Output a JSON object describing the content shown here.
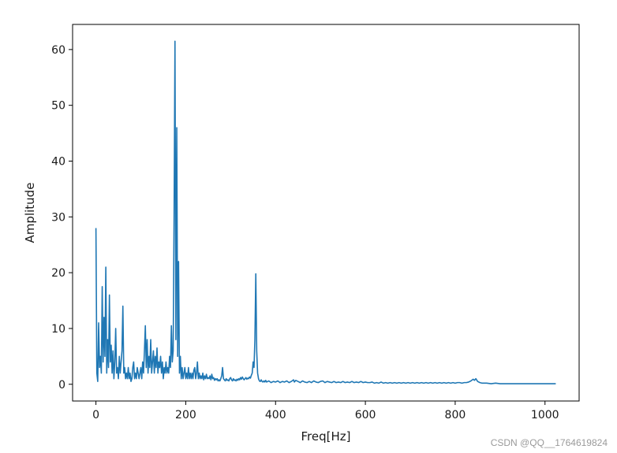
{
  "watermark": "CSDN @QQ__1764619824",
  "chart_data": {
    "type": "line",
    "title": "",
    "xlabel": "Freq[Hz]",
    "ylabel": "Amplitude",
    "xlim": [
      -52,
      1076
    ],
    "ylim": [
      -3,
      64.5
    ],
    "x_ticks": [
      0,
      200,
      400,
      600,
      800,
      1000
    ],
    "y_ticks": [
      0,
      10,
      20,
      30,
      40,
      50,
      60
    ],
    "grid": false,
    "legend": "none",
    "series": [
      {
        "color": "#1f77b4",
        "points": [
          [
            0,
            28
          ],
          [
            2,
            2
          ],
          [
            4,
            0.5
          ],
          [
            6,
            11
          ],
          [
            8,
            3
          ],
          [
            10,
            5
          ],
          [
            12,
            2
          ],
          [
            14,
            17.5
          ],
          [
            16,
            4
          ],
          [
            18,
            12
          ],
          [
            20,
            5
          ],
          [
            22,
            21
          ],
          [
            24,
            2
          ],
          [
            26,
            8
          ],
          [
            28,
            3
          ],
          [
            30,
            16
          ],
          [
            32,
            4
          ],
          [
            34,
            7
          ],
          [
            36,
            2
          ],
          [
            38,
            6
          ],
          [
            40,
            1
          ],
          [
            42,
            4
          ],
          [
            44,
            10
          ],
          [
            46,
            2
          ],
          [
            48,
            3
          ],
          [
            50,
            1
          ],
          [
            52,
            5
          ],
          [
            54,
            2
          ],
          [
            56,
            4
          ],
          [
            58,
            6
          ],
          [
            60,
            14
          ],
          [
            62,
            2
          ],
          [
            64,
            3
          ],
          [
            66,
            1
          ],
          [
            68,
            2
          ],
          [
            70,
            1
          ],
          [
            72,
            3
          ],
          [
            74,
            1
          ],
          [
            76,
            2
          ],
          [
            78,
            0.5
          ],
          [
            80,
            1
          ],
          [
            82,
            3
          ],
          [
            84,
            4
          ],
          [
            86,
            1
          ],
          [
            88,
            2
          ],
          [
            90,
            1
          ],
          [
            92,
            3
          ],
          [
            94,
            2
          ],
          [
            96,
            1
          ],
          [
            98,
            2
          ],
          [
            100,
            3
          ],
          [
            102,
            1
          ],
          [
            104,
            4
          ],
          [
            106,
            2
          ],
          [
            108,
            6
          ],
          [
            110,
            10.5
          ],
          [
            112,
            3
          ],
          [
            114,
            8
          ],
          [
            116,
            2
          ],
          [
            118,
            5
          ],
          [
            120,
            3
          ],
          [
            122,
            8
          ],
          [
            124,
            2
          ],
          [
            126,
            4
          ],
          [
            128,
            6
          ],
          [
            130,
            2
          ],
          [
            132,
            5
          ],
          [
            134,
            3
          ],
          [
            136,
            6.5
          ],
          [
            138,
            2
          ],
          [
            140,
            4
          ],
          [
            142,
            3
          ],
          [
            144,
            5
          ],
          [
            146,
            2
          ],
          [
            148,
            4
          ],
          [
            150,
            1
          ],
          [
            152,
            3
          ],
          [
            154,
            2
          ],
          [
            156,
            4
          ],
          [
            158,
            2
          ],
          [
            160,
            3
          ],
          [
            162,
            2
          ],
          [
            164,
            5
          ],
          [
            166,
            3
          ],
          [
            168,
            10.5
          ],
          [
            170,
            4
          ],
          [
            172,
            6
          ],
          [
            174,
            30
          ],
          [
            176,
            61.5
          ],
          [
            178,
            8
          ],
          [
            180,
            46
          ],
          [
            182,
            5
          ],
          [
            184,
            22
          ],
          [
            186,
            2
          ],
          [
            188,
            5
          ],
          [
            190,
            1
          ],
          [
            192,
            3
          ],
          [
            194,
            1
          ],
          [
            196,
            2
          ],
          [
            198,
            3
          ],
          [
            200,
            1
          ],
          [
            202,
            2
          ],
          [
            204,
            1
          ],
          [
            206,
            3
          ],
          [
            208,
            1
          ],
          [
            210,
            2
          ],
          [
            212,
            1
          ],
          [
            214,
            2
          ],
          [
            216,
            1
          ],
          [
            218,
            2.5
          ],
          [
            220,
            3
          ],
          [
            222,
            1
          ],
          [
            224,
            2
          ],
          [
            226,
            4
          ],
          [
            228,
            1
          ],
          [
            230,
            2
          ],
          [
            232,
            1
          ],
          [
            234,
            1.5
          ],
          [
            236,
            1
          ],
          [
            238,
            2
          ],
          [
            240,
            0.8
          ],
          [
            242,
            1.5
          ],
          [
            244,
            1
          ],
          [
            246,
            1.8
          ],
          [
            248,
            1
          ],
          [
            250,
            1.2
          ],
          [
            252,
            1
          ],
          [
            254,
            1.5
          ],
          [
            256,
            0.8
          ],
          [
            258,
            1.8
          ],
          [
            260,
            1
          ],
          [
            262,
            1.2
          ],
          [
            264,
            0.7
          ],
          [
            266,
            1
          ],
          [
            268,
            0.8
          ],
          [
            270,
            1
          ],
          [
            272,
            0.6
          ],
          [
            274,
            0.8
          ],
          [
            276,
            0.6
          ],
          [
            278,
            1
          ],
          [
            280,
            1.5
          ],
          [
            282,
            3
          ],
          [
            284,
            1
          ],
          [
            286,
            0.8
          ],
          [
            288,
            0.6
          ],
          [
            290,
            1
          ],
          [
            292,
            0.7
          ],
          [
            294,
            0.8
          ],
          [
            296,
            0.6
          ],
          [
            298,
            1
          ],
          [
            300,
            1.2
          ],
          [
            302,
            0.8
          ],
          [
            304,
            0.6
          ],
          [
            306,
            1
          ],
          [
            308,
            0.7
          ],
          [
            310,
            0.8
          ],
          [
            312,
            0.6
          ],
          [
            314,
            0.9
          ],
          [
            316,
            0.7
          ],
          [
            318,
            1
          ],
          [
            320,
            0.8
          ],
          [
            322,
            1.2
          ],
          [
            324,
            0.9
          ],
          [
            326,
            1.3
          ],
          [
            328,
            1
          ],
          [
            330,
            0.8
          ],
          [
            332,
            1
          ],
          [
            334,
            1.2
          ],
          [
            336,
            0.9
          ],
          [
            338,
            1.1
          ],
          [
            340,
            1
          ],
          [
            342,
            1.3
          ],
          [
            344,
            1.1
          ],
          [
            346,
            1.6
          ],
          [
            348,
            2
          ],
          [
            350,
            4
          ],
          [
            352,
            3
          ],
          [
            354,
            8
          ],
          [
            356,
            19.8
          ],
          [
            358,
            6
          ],
          [
            360,
            2
          ],
          [
            362,
            1
          ],
          [
            364,
            0.6
          ],
          [
            366,
            0.5
          ],
          [
            368,
            0.8
          ],
          [
            370,
            0.5
          ],
          [
            372,
            0.4
          ],
          [
            374,
            0.6
          ],
          [
            376,
            0.4
          ],
          [
            378,
            0.7
          ],
          [
            380,
            0.4
          ],
          [
            385,
            0.6
          ],
          [
            390,
            0.3
          ],
          [
            395,
            0.5
          ],
          [
            400,
            0.4
          ],
          [
            405,
            0.6
          ],
          [
            410,
            0.3
          ],
          [
            415,
            0.5
          ],
          [
            420,
            0.4
          ],
          [
            425,
            0.6
          ],
          [
            430,
            0.3
          ],
          [
            435,
            0.5
          ],
          [
            440,
            0.8
          ],
          [
            442,
            0.4
          ],
          [
            445,
            0.7
          ],
          [
            450,
            0.5
          ],
          [
            455,
            0.3
          ],
          [
            460,
            0.6
          ],
          [
            465,
            0.4
          ],
          [
            470,
            0.3
          ],
          [
            475,
            0.5
          ],
          [
            480,
            0.3
          ],
          [
            485,
            0.6
          ],
          [
            490,
            0.4
          ],
          [
            495,
            0.3
          ],
          [
            500,
            0.5
          ],
          [
            505,
            0.6
          ],
          [
            510,
            0.3
          ],
          [
            515,
            0.5
          ],
          [
            520,
            0.4
          ],
          [
            525,
            0.3
          ],
          [
            530,
            0.5
          ],
          [
            535,
            0.3
          ],
          [
            540,
            0.4
          ],
          [
            545,
            0.3
          ],
          [
            550,
            0.5
          ],
          [
            555,
            0.3
          ],
          [
            560,
            0.4
          ],
          [
            565,
            0.3
          ],
          [
            570,
            0.5
          ],
          [
            575,
            0.3
          ],
          [
            580,
            0.4
          ],
          [
            585,
            0.3
          ],
          [
            590,
            0.5
          ],
          [
            595,
            0.3
          ],
          [
            600,
            0.4
          ],
          [
            605,
            0.3
          ],
          [
            610,
            0.3
          ],
          [
            615,
            0.4
          ],
          [
            620,
            0.2
          ],
          [
            625,
            0.3
          ],
          [
            630,
            0.2
          ],
          [
            635,
            0.4
          ],
          [
            640,
            0.2
          ],
          [
            645,
            0.3
          ],
          [
            650,
            0.2
          ],
          [
            655,
            0.3
          ],
          [
            660,
            0.2
          ],
          [
            665,
            0.3
          ],
          [
            670,
            0.2
          ],
          [
            675,
            0.3
          ],
          [
            680,
            0.2
          ],
          [
            685,
            0.3
          ],
          [
            690,
            0.2
          ],
          [
            695,
            0.3
          ],
          [
            700,
            0.2
          ],
          [
            705,
            0.3
          ],
          [
            710,
            0.2
          ],
          [
            715,
            0.3
          ],
          [
            720,
            0.2
          ],
          [
            725,
            0.3
          ],
          [
            730,
            0.2
          ],
          [
            735,
            0.3
          ],
          [
            740,
            0.2
          ],
          [
            745,
            0.3
          ],
          [
            750,
            0.2
          ],
          [
            755,
            0.3
          ],
          [
            760,
            0.2
          ],
          [
            765,
            0.3
          ],
          [
            770,
            0.2
          ],
          [
            775,
            0.3
          ],
          [
            780,
            0.2
          ],
          [
            785,
            0.3
          ],
          [
            790,
            0.2
          ],
          [
            795,
            0.3
          ],
          [
            800,
            0.2
          ],
          [
            805,
            0.3
          ],
          [
            810,
            0.3
          ],
          [
            815,
            0.2
          ],
          [
            820,
            0.3
          ],
          [
            825,
            0.3
          ],
          [
            830,
            0.4
          ],
          [
            835,
            0.6
          ],
          [
            840,
            0.9
          ],
          [
            843,
            0.7
          ],
          [
            846,
            1
          ],
          [
            850,
            0.5
          ],
          [
            855,
            0.3
          ],
          [
            860,
            0.2
          ],
          [
            865,
            0.2
          ],
          [
            870,
            0.2
          ],
          [
            880,
            0.1
          ],
          [
            890,
            0.2
          ],
          [
            900,
            0.1
          ],
          [
            910,
            0.1
          ],
          [
            920,
            0.1
          ],
          [
            930,
            0.1
          ],
          [
            940,
            0.1
          ],
          [
            950,
            0.1
          ],
          [
            960,
            0.1
          ],
          [
            970,
            0.1
          ],
          [
            980,
            0.1
          ],
          [
            990,
            0.1
          ],
          [
            1000,
            0.1
          ],
          [
            1010,
            0.1
          ],
          [
            1024,
            0.1
          ]
        ]
      }
    ]
  }
}
